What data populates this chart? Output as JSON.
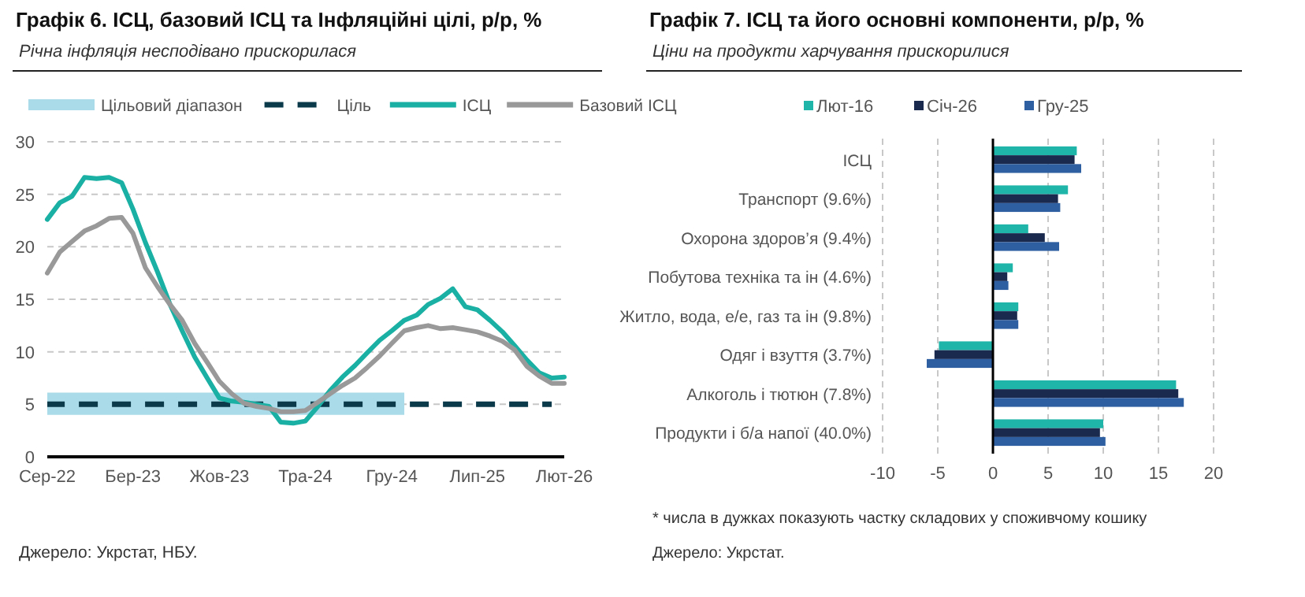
{
  "chart_data": [
    {
      "type": "line",
      "title": "Графік 6. ІСЦ, базовий ІСЦ та Інфляційні цілі, р/р, %",
      "subtitle": "Річна інфляція несподівано прискорилася",
      "annotations": [
        "Джерело: Укрстат, НБУ."
      ],
      "xlim": [
        "2022-08",
        "2026-02"
      ],
      "xticks": [
        {
          "value": "2022-08",
          "label": "Сер-22"
        },
        {
          "value": "2023-03",
          "label": "Бер-23"
        },
        {
          "value": "2023-10",
          "label": "Жов-23"
        },
        {
          "value": "2024-05",
          "label": "Тра-24"
        },
        {
          "value": "2024-12",
          "label": "Гру-24"
        },
        {
          "value": "2025-07",
          "label": "Лип-25"
        },
        {
          "value": "2026-02",
          "label": "Лют-26"
        }
      ],
      "ylim": [
        0,
        30
      ],
      "yticks": [
        0,
        5,
        10,
        15,
        20,
        25,
        30
      ],
      "grid": "y",
      "legend": "top",
      "marker": "none",
      "x": [
        "2022-08",
        "2022-09",
        "2022-10",
        "2022-11",
        "2022-12",
        "2023-01",
        "2023-02",
        "2023-03",
        "2023-04",
        "2023-05",
        "2023-06",
        "2023-07",
        "2023-08",
        "2023-09",
        "2023-10",
        "2023-11",
        "2023-12",
        "2024-01",
        "2024-02",
        "2024-03",
        "2024-04",
        "2024-05",
        "2024-06",
        "2024-07",
        "2024-08",
        "2024-09",
        "2024-10",
        "2024-11",
        "2024-12",
        "2025-01",
        "2025-02",
        "2025-03",
        "2025-04",
        "2025-05",
        "2025-06",
        "2025-07",
        "2025-08",
        "2025-09",
        "2025-10",
        "2025-11",
        "2025-12",
        "2026-01",
        "2026-02"
      ],
      "series": [
        {
          "name": "Цільовий діапазон",
          "type": "line",
          "color": "#aadbe8",
          "values": [
            6,
            6,
            6,
            6,
            6,
            6,
            6,
            6,
            6,
            6,
            6,
            6,
            6,
            6,
            6,
            6,
            6,
            6,
            6,
            6,
            6,
            6,
            6,
            6,
            6,
            6,
            6,
            6,
            6,
            6,
            null,
            null,
            null,
            null,
            null,
            null,
            null,
            null,
            null,
            null,
            null,
            null,
            null
          ],
          "upper": [
            6,
            6,
            6,
            6,
            6,
            6,
            6,
            6,
            6,
            6,
            6,
            6,
            6,
            6,
            6,
            6,
            6,
            6,
            6,
            6,
            6,
            6,
            6,
            6,
            6,
            6,
            6,
            6,
            6,
            6,
            null,
            null,
            null,
            null,
            null,
            null,
            null,
            null,
            null,
            null,
            null,
            null,
            null
          ],
          "lower": [
            4,
            4,
            4,
            4,
            4,
            4,
            4,
            4,
            4,
            4,
            4,
            4,
            4,
            4,
            4,
            4,
            4,
            4,
            4,
            4,
            4,
            4,
            4,
            4,
            4,
            4,
            4,
            4,
            4,
            4,
            null,
            null,
            null,
            null,
            null,
            null,
            null,
            null,
            null,
            null,
            null,
            null,
            null
          ]
        },
        {
          "name": "Ціль",
          "type": "line",
          "line_style": "dashed",
          "color": "#0b3a4a",
          "values": [
            5,
            5,
            5,
            5,
            5,
            5,
            5,
            5,
            5,
            5,
            5,
            5,
            5,
            5,
            5,
            5,
            5,
            5,
            5,
            5,
            5,
            5,
            5,
            5,
            5,
            5,
            5,
            5,
            5,
            5,
            5,
            5,
            5,
            5,
            5,
            5,
            5,
            5,
            5,
            5,
            5,
            5,
            null
          ]
        },
        {
          "name": "ІСЦ",
          "type": "line",
          "color": "#1ab0a3",
          "values": [
            22.6,
            24.2,
            24.8,
            26.6,
            26.5,
            26.6,
            26.1,
            23.6,
            20.4,
            17.6,
            14.5,
            12,
            9.5,
            7.5,
            5.6,
            5.3,
            5.2,
            5,
            4.8,
            3.3,
            3.2,
            3.4,
            4.8,
            6.3,
            7.6,
            8.7,
            9.9,
            11.1,
            12,
            13,
            13.5,
            14.5,
            15.1,
            16,
            14.3,
            14,
            13,
            11.9,
            10.6,
            9.2,
            8,
            7.5,
            7.6
          ]
        },
        {
          "name": "Базовий ІСЦ",
          "type": "line",
          "color": "#999999",
          "values": [
            17.5,
            19.5,
            20.5,
            21.5,
            22,
            22.7,
            22.8,
            21.3,
            18,
            16.2,
            14.5,
            13,
            10.8,
            9,
            7.2,
            6,
            5.1,
            4.8,
            4.6,
            4.3,
            4.3,
            4.4,
            5.2,
            6,
            6.8,
            7.5,
            8.5,
            9.6,
            10.8,
            12,
            12.3,
            12.5,
            12.2,
            12.3,
            12.1,
            11.9,
            11.5,
            11,
            10.2,
            8.6,
            7.7,
            7,
            7
          ]
        }
      ]
    },
    {
      "type": "bar",
      "orientation": "horizontal",
      "title": "Графік 7. ІСЦ та його основні компоненти, р/р, %",
      "subtitle": "Ціни на продукти харчування прискорилися",
      "annotations": [
        "* числа в дужках показують частку складових у споживчому кошику",
        "Джерело: Укрстат."
      ],
      "categories": [
        "ІСЦ",
        "Транспорт (9.6%)",
        "Охорона здоров’я (9.4%)",
        "Побутова техніка та ін (4.6%)",
        "Житло, вода, е/е, газ та ін (9.8%)",
        "Одяг і взуття (3.7%)",
        "Алкоголь і тютюн (7.8%)",
        "Продукти і б/а напої (40.0%)"
      ],
      "xlim": [
        -10,
        20
      ],
      "xticks": [
        -10,
        -5,
        0,
        5,
        10,
        15,
        20
      ],
      "grid": "x",
      "legend": "top",
      "series": [
        {
          "name": "Лют-16",
          "color": "#1fb5a8",
          "values": [
            7.6,
            6.8,
            3.2,
            1.8,
            2.3,
            -4.9,
            16.6,
            10
          ]
        },
        {
          "name": "Січ-26",
          "color": "#1a2a4f",
          "values": [
            7.4,
            5.9,
            4.7,
            1.3,
            2.2,
            -5.3,
            16.8,
            9.7
          ]
        },
        {
          "name": "Гру-25",
          "color": "#2e5fa0",
          "values": [
            8,
            6.1,
            6,
            1.4,
            2.3,
            -6,
            17.3,
            10.2
          ]
        }
      ]
    }
  ]
}
